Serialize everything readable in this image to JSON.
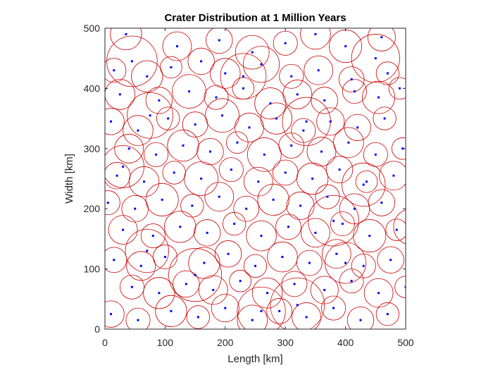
{
  "chart_data": {
    "type": "scatter",
    "title": "Crater Distribution at 1 Million Years",
    "xlabel": "Length [km]",
    "ylabel": "Width [km]",
    "xlim": [
      0,
      500
    ],
    "ylim": [
      0,
      500
    ],
    "xticks": [
      0,
      100,
      200,
      300,
      400,
      500
    ],
    "yticks": [
      0,
      100,
      200,
      300,
      400,
      500
    ],
    "grid": false,
    "legend": "none",
    "aspect": "equal",
    "colors": {
      "crater_rim": "#cc0000",
      "crater_center": "#0000ff",
      "axes": "#262626"
    },
    "series": [
      {
        "marker": "circle-with-center-dot",
        "description_units": "x, y, radius in km",
        "x": [
          45,
          75,
          320,
          335,
          430,
          450,
          30,
          150,
          230,
          380,
          510,
          260,
          70,
          400,
          35,
          120,
          190,
          245,
          300,
          350,
          400,
          460,
          15,
          70,
          110,
          160,
          200,
          260,
          310,
          355,
          410,
          470,
          25,
          90,
          140,
          185,
          230,
          275,
          320,
          365,
          415,
          455,
          490,
          10,
          55,
          105,
          150,
          195,
          240,
          285,
          330,
          375,
          420,
          465,
          40,
          85,
          130,
          175,
          220,
          265,
          310,
          360,
          405,
          450,
          495,
          20,
          65,
          115,
          160,
          210,
          255,
          300,
          345,
          390,
          435,
          480,
          5,
          50,
          95,
          145,
          190,
          235,
          280,
          325,
          370,
          415,
          460,
          30,
          80,
          125,
          170,
          215,
          260,
          305,
          350,
          395,
          440,
          485,
          15,
          60,
          100,
          165,
          205,
          250,
          295,
          340,
          385,
          430,
          475,
          45,
          90,
          135,
          180,
          225,
          270,
          315,
          365,
          410,
          455,
          500,
          10,
          55,
          110,
          155,
          200,
          245,
          290,
          335,
          380,
          425,
          470
        ],
        "y": [
          445,
          355,
          40,
          345,
          240,
          450,
          270,
          90,
          420,
          180,
          170,
          30,
          130,
          110,
          490,
          470,
          480,
          460,
          475,
          490,
          470,
          485,
          430,
          420,
          435,
          445,
          425,
          440,
          420,
          430,
          415,
          425,
          390,
          380,
          395,
          385,
          400,
          375,
          390,
          380,
          395,
          385,
          400,
          345,
          330,
          350,
          340,
          355,
          335,
          350,
          330,
          345,
          335,
          350,
          300,
          290,
          305,
          295,
          310,
          290,
          305,
          295,
          310,
          290,
          300,
          255,
          245,
          260,
          250,
          265,
          245,
          260,
          250,
          265,
          245,
          255,
          210,
          200,
          215,
          205,
          220,
          200,
          215,
          205,
          220,
          200,
          210,
          165,
          155,
          170,
          160,
          175,
          155,
          170,
          160,
          175,
          155,
          165,
          115,
          105,
          120,
          110,
          125,
          105,
          120,
          110,
          125,
          105,
          115,
          70,
          60,
          75,
          65,
          80,
          60,
          75,
          65,
          80,
          60,
          70,
          25,
          15,
          30,
          20,
          35,
          15,
          30,
          20,
          35,
          15,
          25
        ],
        "r": [
          42,
          38,
          45,
          40,
          36,
          40,
          35,
          44,
          38,
          42,
          30,
          40,
          36,
          34,
          26,
          24,
          22,
          28,
          20,
          25,
          27,
          23,
          20,
          26,
          18,
          22,
          25,
          30,
          20,
          24,
          21,
          19,
          25,
          22,
          28,
          20,
          18,
          26,
          24,
          22,
          20,
          27,
          18,
          22,
          25,
          19,
          21,
          28,
          24,
          26,
          20,
          23,
          22,
          19,
          24,
          20,
          26,
          22,
          18,
          28,
          21,
          24,
          25,
          20,
          18,
          22,
          25,
          19,
          28,
          20,
          24,
          21,
          26,
          22,
          18,
          24,
          20,
          22,
          27,
          19,
          24,
          21,
          26,
          23,
          20,
          25,
          22,
          24,
          20,
          26,
          22,
          19,
          25,
          21,
          24,
          20,
          27,
          18,
          21,
          24,
          20,
          26,
          22,
          19,
          25,
          21,
          24,
          20,
          22,
          20,
          26,
          22,
          24,
          18,
          25,
          21,
          23,
          20,
          24,
          18,
          22,
          20,
          26,
          19,
          23,
          25,
          21,
          24,
          20,
          22,
          19
        ]
      }
    ]
  }
}
